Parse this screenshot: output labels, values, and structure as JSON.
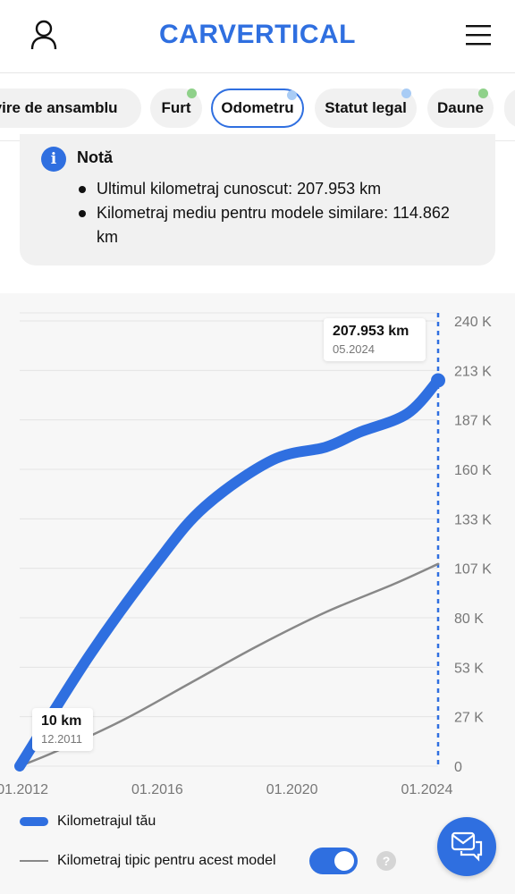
{
  "header": {
    "logo_text": "CARVERTICAL",
    "user_icon": "user-icon",
    "menu_icon": "hamburger-menu-icon"
  },
  "tabs": [
    {
      "label": "Privire de ansamblu",
      "active": false,
      "dot": null
    },
    {
      "label": "Furt",
      "active": false,
      "dot": "#8fd18a"
    },
    {
      "label": "Odometru",
      "active": true,
      "dot": "#a9ccf5"
    },
    {
      "label": "Statut legal",
      "active": false,
      "dot": "#a9ccf5"
    },
    {
      "label": "Daune",
      "active": false,
      "dot": "#8fd18a"
    }
  ],
  "note": {
    "title": "Notă",
    "items": [
      "Ultimul kilometraj cunoscut: 207.953 km",
      "Kilometraj mediu pentru modele similare: 114.862 km"
    ]
  },
  "chart_data": {
    "type": "line",
    "x_ticks": [
      "01.2012",
      "01.2016",
      "01.2020",
      "01.2024"
    ],
    "y_ticks": [
      "0",
      "27 K",
      "53 K",
      "80 K",
      "107 K",
      "133 K",
      "160 K",
      "187 K",
      "213 K",
      "240 K"
    ],
    "ylim": [
      0,
      240000
    ],
    "xlim": [
      "12.2011",
      "05.2024"
    ],
    "series": [
      {
        "name": "Kilometrajul tău",
        "color": "#2f6fe0",
        "points": [
          [
            "12.2011",
            10
          ],
          [
            "01.2014",
            60000
          ],
          [
            "01.2016",
            110000
          ],
          [
            "06.2017",
            140000
          ],
          [
            "06.2019",
            165000
          ],
          [
            "01.2021",
            172000
          ],
          [
            "01.2022",
            180000
          ],
          [
            "06.2023",
            190000
          ],
          [
            "05.2024",
            207953
          ]
        ]
      },
      {
        "name": "Kilometraj tipic pentru acest model",
        "color": "#888888",
        "points": [
          [
            "12.2011",
            0
          ],
          [
            "01.2013",
            8000
          ],
          [
            "01.2015",
            25000
          ],
          [
            "01.2017",
            45000
          ],
          [
            "01.2019",
            65000
          ],
          [
            "01.2021",
            83000
          ],
          [
            "01.2023",
            98000
          ],
          [
            "05.2024",
            109000
          ]
        ]
      }
    ],
    "annotations": [
      {
        "value": "207.953 km",
        "date": "05.2024"
      },
      {
        "value": "10 km",
        "date": "12.2011"
      }
    ],
    "grid": true
  },
  "legend": {
    "series1": "Kilometrajul tău",
    "series2": "Kilometraj tipic pentru acest model",
    "toggle_on": true,
    "help_icon": "question-mark-icon"
  },
  "chat_icon": "chat-bubble-icon"
}
